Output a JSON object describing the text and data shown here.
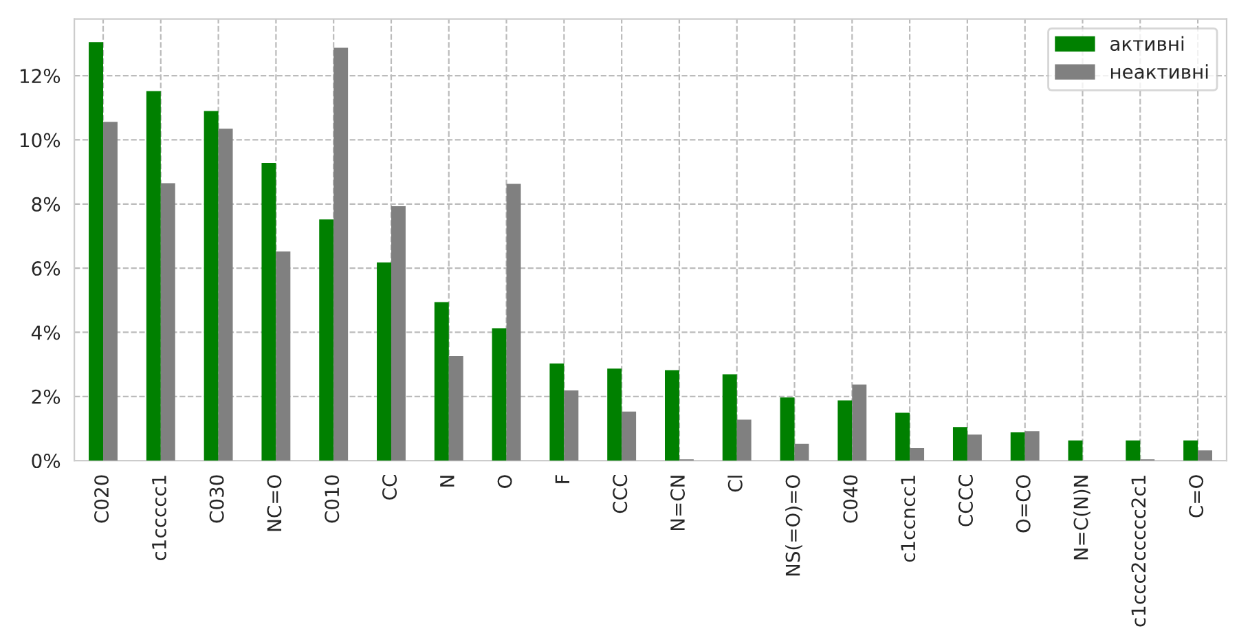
{
  "chart_data": {
    "type": "bar",
    "categories": [
      "C020",
      "c1ccccc1",
      "C030",
      "NC=O",
      "C010",
      "CC",
      "N",
      "O",
      "F",
      "CCC",
      "N=CN",
      "Cl",
      "NS(=O)=O",
      "C040",
      "c1ccncc1",
      "CCCC",
      "O=CO",
      "N=C(N)N",
      "c1ccc2ccccc2c1",
      "C=O"
    ],
    "series": [
      {
        "name": "активні",
        "color": "#008000",
        "values": [
          13.05,
          11.52,
          10.9,
          9.28,
          7.52,
          6.18,
          4.94,
          4.13,
          3.03,
          2.87,
          2.82,
          2.69,
          1.97,
          1.88,
          1.49,
          1.05,
          0.88,
          0.63,
          0.63,
          0.63
        ]
      },
      {
        "name": "неактивні",
        "color": "#808080",
        "values": [
          10.56,
          8.65,
          10.35,
          6.52,
          12.87,
          7.93,
          3.26,
          8.63,
          2.19,
          1.53,
          0.04,
          1.28,
          0.52,
          2.37,
          0.39,
          0.81,
          0.92,
          null,
          0.04,
          0.32
        ]
      }
    ],
    "ylim": [
      0,
      13.77
    ],
    "yticks": [
      {
        "value": 0,
        "label": "0%"
      },
      {
        "value": 2,
        "label": "2%"
      },
      {
        "value": 4,
        "label": "4%"
      },
      {
        "value": 6,
        "label": "6%"
      },
      {
        "value": 8,
        "label": "8%"
      },
      {
        "value": 10,
        "label": "10%"
      },
      {
        "value": 12,
        "label": "12%"
      }
    ],
    "grid": true,
    "legend": "top right"
  }
}
